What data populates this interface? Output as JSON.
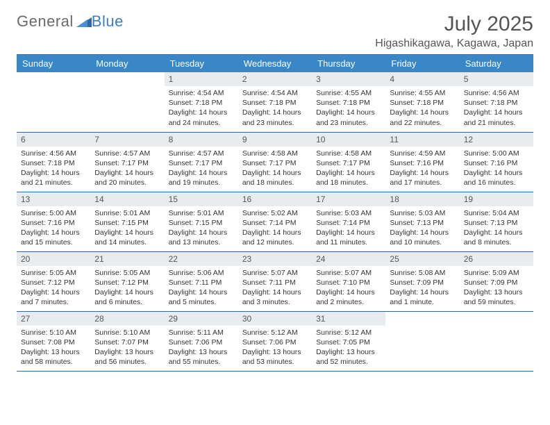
{
  "brand": {
    "word1": "General",
    "word2": "Blue"
  },
  "title": "July 2025",
  "location": "Higashikagawa, Kagawa, Japan",
  "colors": {
    "header_bg": "#3a87c7",
    "header_text": "#ffffff",
    "rule": "#2f6aa6",
    "daynum_bg": "#e9ecef",
    "logo_gray": "#6a6a6a",
    "logo_blue": "#3a7fc4"
  },
  "weekdays": [
    "Sunday",
    "Monday",
    "Tuesday",
    "Wednesday",
    "Thursday",
    "Friday",
    "Saturday"
  ],
  "weeks": [
    [
      {
        "n": "",
        "lines": []
      },
      {
        "n": "",
        "lines": []
      },
      {
        "n": "1",
        "lines": [
          "Sunrise: 4:54 AM",
          "Sunset: 7:18 PM",
          "Daylight: 14 hours",
          "and 24 minutes."
        ]
      },
      {
        "n": "2",
        "lines": [
          "Sunrise: 4:54 AM",
          "Sunset: 7:18 PM",
          "Daylight: 14 hours",
          "and 23 minutes."
        ]
      },
      {
        "n": "3",
        "lines": [
          "Sunrise: 4:55 AM",
          "Sunset: 7:18 PM",
          "Daylight: 14 hours",
          "and 23 minutes."
        ]
      },
      {
        "n": "4",
        "lines": [
          "Sunrise: 4:55 AM",
          "Sunset: 7:18 PM",
          "Daylight: 14 hours",
          "and 22 minutes."
        ]
      },
      {
        "n": "5",
        "lines": [
          "Sunrise: 4:56 AM",
          "Sunset: 7:18 PM",
          "Daylight: 14 hours",
          "and 21 minutes."
        ]
      }
    ],
    [
      {
        "n": "6",
        "lines": [
          "Sunrise: 4:56 AM",
          "Sunset: 7:18 PM",
          "Daylight: 14 hours",
          "and 21 minutes."
        ]
      },
      {
        "n": "7",
        "lines": [
          "Sunrise: 4:57 AM",
          "Sunset: 7:17 PM",
          "Daylight: 14 hours",
          "and 20 minutes."
        ]
      },
      {
        "n": "8",
        "lines": [
          "Sunrise: 4:57 AM",
          "Sunset: 7:17 PM",
          "Daylight: 14 hours",
          "and 19 minutes."
        ]
      },
      {
        "n": "9",
        "lines": [
          "Sunrise: 4:58 AM",
          "Sunset: 7:17 PM",
          "Daylight: 14 hours",
          "and 18 minutes."
        ]
      },
      {
        "n": "10",
        "lines": [
          "Sunrise: 4:58 AM",
          "Sunset: 7:17 PM",
          "Daylight: 14 hours",
          "and 18 minutes."
        ]
      },
      {
        "n": "11",
        "lines": [
          "Sunrise: 4:59 AM",
          "Sunset: 7:16 PM",
          "Daylight: 14 hours",
          "and 17 minutes."
        ]
      },
      {
        "n": "12",
        "lines": [
          "Sunrise: 5:00 AM",
          "Sunset: 7:16 PM",
          "Daylight: 14 hours",
          "and 16 minutes."
        ]
      }
    ],
    [
      {
        "n": "13",
        "lines": [
          "Sunrise: 5:00 AM",
          "Sunset: 7:16 PM",
          "Daylight: 14 hours",
          "and 15 minutes."
        ]
      },
      {
        "n": "14",
        "lines": [
          "Sunrise: 5:01 AM",
          "Sunset: 7:15 PM",
          "Daylight: 14 hours",
          "and 14 minutes."
        ]
      },
      {
        "n": "15",
        "lines": [
          "Sunrise: 5:01 AM",
          "Sunset: 7:15 PM",
          "Daylight: 14 hours",
          "and 13 minutes."
        ]
      },
      {
        "n": "16",
        "lines": [
          "Sunrise: 5:02 AM",
          "Sunset: 7:14 PM",
          "Daylight: 14 hours",
          "and 12 minutes."
        ]
      },
      {
        "n": "17",
        "lines": [
          "Sunrise: 5:03 AM",
          "Sunset: 7:14 PM",
          "Daylight: 14 hours",
          "and 11 minutes."
        ]
      },
      {
        "n": "18",
        "lines": [
          "Sunrise: 5:03 AM",
          "Sunset: 7:13 PM",
          "Daylight: 14 hours",
          "and 10 minutes."
        ]
      },
      {
        "n": "19",
        "lines": [
          "Sunrise: 5:04 AM",
          "Sunset: 7:13 PM",
          "Daylight: 14 hours",
          "and 8 minutes."
        ]
      }
    ],
    [
      {
        "n": "20",
        "lines": [
          "Sunrise: 5:05 AM",
          "Sunset: 7:12 PM",
          "Daylight: 14 hours",
          "and 7 minutes."
        ]
      },
      {
        "n": "21",
        "lines": [
          "Sunrise: 5:05 AM",
          "Sunset: 7:12 PM",
          "Daylight: 14 hours",
          "and 6 minutes."
        ]
      },
      {
        "n": "22",
        "lines": [
          "Sunrise: 5:06 AM",
          "Sunset: 7:11 PM",
          "Daylight: 14 hours",
          "and 5 minutes."
        ]
      },
      {
        "n": "23",
        "lines": [
          "Sunrise: 5:07 AM",
          "Sunset: 7:11 PM",
          "Daylight: 14 hours",
          "and 3 minutes."
        ]
      },
      {
        "n": "24",
        "lines": [
          "Sunrise: 5:07 AM",
          "Sunset: 7:10 PM",
          "Daylight: 14 hours",
          "and 2 minutes."
        ]
      },
      {
        "n": "25",
        "lines": [
          "Sunrise: 5:08 AM",
          "Sunset: 7:09 PM",
          "Daylight: 14 hours",
          "and 1 minute."
        ]
      },
      {
        "n": "26",
        "lines": [
          "Sunrise: 5:09 AM",
          "Sunset: 7:09 PM",
          "Daylight: 13 hours",
          "and 59 minutes."
        ]
      }
    ],
    [
      {
        "n": "27",
        "lines": [
          "Sunrise: 5:10 AM",
          "Sunset: 7:08 PM",
          "Daylight: 13 hours",
          "and 58 minutes."
        ]
      },
      {
        "n": "28",
        "lines": [
          "Sunrise: 5:10 AM",
          "Sunset: 7:07 PM",
          "Daylight: 13 hours",
          "and 56 minutes."
        ]
      },
      {
        "n": "29",
        "lines": [
          "Sunrise: 5:11 AM",
          "Sunset: 7:06 PM",
          "Daylight: 13 hours",
          "and 55 minutes."
        ]
      },
      {
        "n": "30",
        "lines": [
          "Sunrise: 5:12 AM",
          "Sunset: 7:06 PM",
          "Daylight: 13 hours",
          "and 53 minutes."
        ]
      },
      {
        "n": "31",
        "lines": [
          "Sunrise: 5:12 AM",
          "Sunset: 7:05 PM",
          "Daylight: 13 hours",
          "and 52 minutes."
        ]
      },
      {
        "n": "",
        "lines": []
      },
      {
        "n": "",
        "lines": []
      }
    ]
  ]
}
